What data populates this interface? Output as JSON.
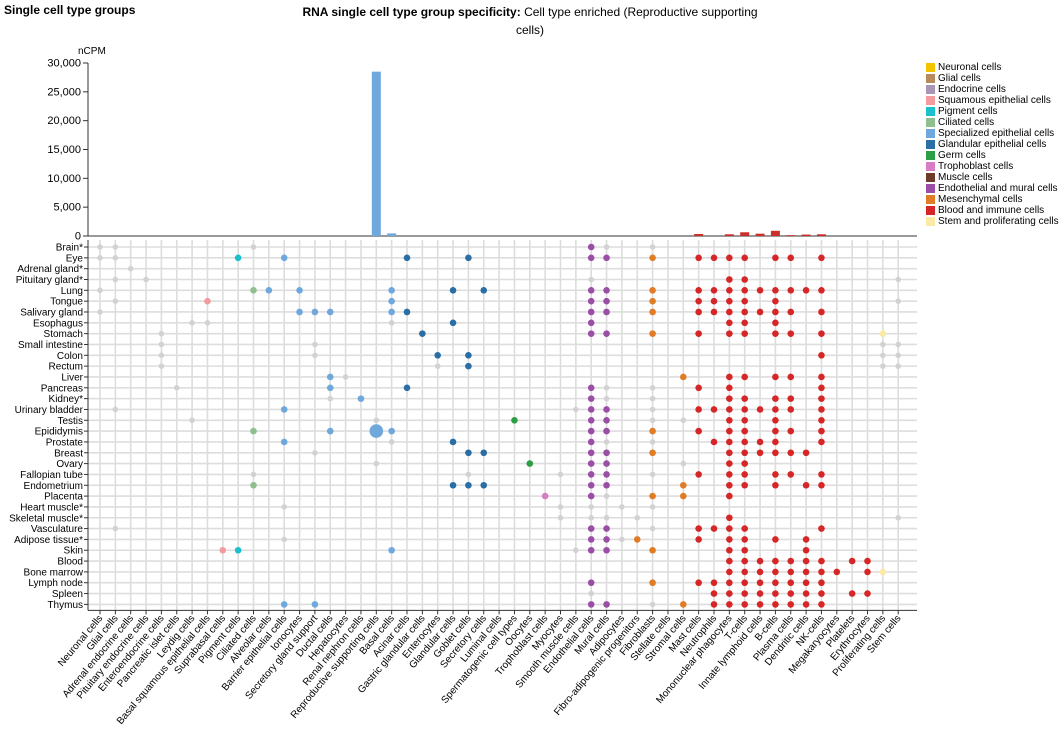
{
  "page": {
    "heading": "Single cell type groups",
    "title_bold": "RNA single cell type group specificity:",
    "title_rest": "Cell type enriched (Reproductive supporting cells)"
  },
  "legend": [
    {
      "label": "Neuronal cells",
      "color": "#f5c400"
    },
    {
      "label": "Glial cells",
      "color": "#b88a5c"
    },
    {
      "label": "Endocrine cells",
      "color": "#a896b4"
    },
    {
      "label": "Squamous epithelial cells",
      "color": "#f49ba0"
    },
    {
      "label": "Pigment cells",
      "color": "#1bc0cc"
    },
    {
      "label": "Ciliated cells",
      "color": "#8fbf8f"
    },
    {
      "label": "Specialized epithelial cells",
      "color": "#6fa8dc"
    },
    {
      "label": "Glandular epithelial cells",
      "color": "#2a6ea6"
    },
    {
      "label": "Germ cells",
      "color": "#2e9e44"
    },
    {
      "label": "Trophoblast cells",
      "color": "#d67dc4"
    },
    {
      "label": "Muscle cells",
      "color": "#6e3b2b"
    },
    {
      "label": "Endothelial and mural cells",
      "color": "#9b4ea6"
    },
    {
      "label": "Mesenchymal cells",
      "color": "#e07b26"
    },
    {
      "label": "Blood and immune cells",
      "color": "#d62728"
    },
    {
      "label": "Stem and proliferating cells",
      "color": "#fbe9a6"
    }
  ],
  "chart_data": {
    "type": "bar",
    "ylabel": "nCPM",
    "ylim": [
      0,
      30000
    ],
    "yticks": [
      0,
      5000,
      10000,
      15000,
      20000,
      25000,
      30000
    ],
    "ytick_labels": [
      "0",
      "5,000",
      "10,000",
      "15,000",
      "20,000",
      "25,000",
      "30,000"
    ],
    "categories": [
      "Neuronal cells",
      "Glial cells",
      "Adrenal endocrine cells",
      "Pituitary endocrine cells",
      "Enteroendocrine cells",
      "Pancreatic islet cells",
      "Leydig cells",
      "Basal squamous epithelial cells",
      "Suprabasal cells",
      "Pigment cells",
      "Ciliated cells",
      "Alveolar cells",
      "Barrier epithelial cells",
      "Ionocytes",
      "Secretory gland support",
      "Ductal cells",
      "Hepatocytes",
      "Renal nephron cells",
      "Reproductive supporting cells",
      "Basal cells",
      "Acinar cells",
      "Gastric glandular cells",
      "Enterocytes",
      "Glandular cells",
      "Goblet cells",
      "Secretory cells",
      "Luminal cells",
      "Spermatogenic cell types",
      "Oocytes",
      "Trophoblast cells",
      "Myocytes",
      "Smooth muscle cells",
      "Endothelial cells",
      "Mural cells",
      "Adipocytes",
      "Fibro-adipogenic progenitors",
      "Fibroblasts",
      "Stellate cells",
      "Stromal cells",
      "Mast cells",
      "Neutrophils",
      "Mononuclear phagocytes",
      "T-cells",
      "Innate lymphoid cells",
      "B-cells",
      "Plasma cells",
      "Dendritic cells",
      "NK-cells",
      "Megakaryocytes",
      "Platelets",
      "Erythrocytes",
      "Proliferating cells",
      "Stem cells"
    ],
    "category_groups": [
      "Neuronal cells",
      "Glial cells",
      "Endocrine cells",
      "Endocrine cells",
      "Endocrine cells",
      "Endocrine cells",
      "Endocrine cells",
      "Squamous epithelial cells",
      "Squamous epithelial cells",
      "Pigment cells",
      "Ciliated cells",
      "Specialized epithelial cells",
      "Specialized epithelial cells",
      "Specialized epithelial cells",
      "Specialized epithelial cells",
      "Specialized epithelial cells",
      "Specialized epithelial cells",
      "Specialized epithelial cells",
      "Specialized epithelial cells",
      "Specialized epithelial cells",
      "Glandular epithelial cells",
      "Glandular epithelial cells",
      "Glandular epithelial cells",
      "Glandular epithelial cells",
      "Glandular epithelial cells",
      "Glandular epithelial cells",
      "Glandular epithelial cells",
      "Germ cells",
      "Germ cells",
      "Trophoblast cells",
      "Muscle cells",
      "Muscle cells",
      "Endothelial and mural cells",
      "Endothelial and mural cells",
      "Mesenchymal cells",
      "Mesenchymal cells",
      "Mesenchymal cells",
      "Mesenchymal cells",
      "Mesenchymal cells",
      "Blood and immune cells",
      "Blood and immune cells",
      "Blood and immune cells",
      "Blood and immune cells",
      "Blood and immune cells",
      "Blood and immune cells",
      "Blood and immune cells",
      "Blood and immune cells",
      "Blood and immune cells",
      "Blood and immune cells",
      "Blood and immune cells",
      "Blood and immune cells",
      "Stem and proliferating cells",
      "Stem and proliferating cells"
    ],
    "values": [
      0,
      0,
      0,
      0,
      0,
      0,
      0,
      0,
      0,
      0,
      0,
      0,
      0,
      0,
      0,
      0,
      0,
      0,
      28500,
      450,
      0,
      0,
      0,
      0,
      0,
      0,
      0,
      0,
      0,
      0,
      0,
      0,
      0,
      0,
      0,
      0,
      0,
      0,
      0,
      350,
      0,
      300,
      650,
      400,
      900,
      150,
      250,
      300,
      0,
      0,
      0,
      0,
      0
    ],
    "tissues": [
      "Brain*",
      "Eye",
      "Adrenal gland*",
      "Pituitary gland*",
      "Lung",
      "Tongue",
      "Salivary gland",
      "Esophagus",
      "Stomach",
      "Small intestine",
      "Colon",
      "Rectum",
      "Liver",
      "Pancreas",
      "Kidney*",
      "Urinary bladder",
      "Testis",
      "Epididymis",
      "Prostate",
      "Breast",
      "Ovary",
      "Fallopian tube",
      "Endometrium",
      "Placenta",
      "Heart muscle*",
      "Skeletal muscle*",
      "Vasculature",
      "Adipose tissue*",
      "Skin",
      "Blood",
      "Bone marrow",
      "Lymph node",
      "Spleen",
      "Thymus"
    ],
    "dot_matrix": [
      {
        "tissue": "Brain*",
        "colored": [
          32
        ],
        "grey": [
          0,
          1,
          10,
          33,
          36
        ]
      },
      {
        "tissue": "Eye",
        "colored": [
          9,
          12,
          20,
          24,
          32,
          33,
          36,
          39,
          40,
          41,
          42,
          44,
          45,
          47
        ],
        "grey": [
          0,
          1
        ]
      },
      {
        "tissue": "Adrenal gland*",
        "colored": [],
        "grey": [
          2
        ]
      },
      {
        "tissue": "Pituitary gland*",
        "colored": [
          41,
          42
        ],
        "grey": [
          1,
          3,
          32,
          52
        ]
      },
      {
        "tissue": "Lung",
        "colored": [
          10,
          11,
          13,
          19,
          23,
          25,
          32,
          33,
          36,
          39,
          40,
          41,
          42,
          43,
          44,
          45,
          46,
          47
        ],
        "grey": [
          0
        ]
      },
      {
        "tissue": "Tongue",
        "colored": [
          7,
          19,
          32,
          33,
          36,
          39,
          40,
          41,
          42,
          44
        ],
        "grey": [
          1,
          52
        ]
      },
      {
        "tissue": "Salivary gland",
        "colored": [
          13,
          14,
          15,
          19,
          20,
          32,
          33,
          36,
          39,
          40,
          41,
          42,
          43,
          44,
          45,
          47
        ],
        "grey": [
          0
        ]
      },
      {
        "tissue": "Esophagus",
        "colored": [
          23,
          32,
          41,
          42,
          44
        ],
        "grey": [
          6,
          7,
          19
        ]
      },
      {
        "tissue": "Stomach",
        "colored": [
          21,
          32,
          33,
          36,
          39,
          41,
          42,
          44,
          45,
          47,
          51
        ],
        "grey": [
          4
        ]
      },
      {
        "tissue": "Small intestine",
        "colored": [],
        "grey": [
          4,
          14,
          51,
          52
        ]
      },
      {
        "tissue": "Colon",
        "colored": [
          22,
          24,
          47
        ],
        "grey": [
          4,
          14,
          51,
          52
        ]
      },
      {
        "tissue": "Rectum",
        "colored": [
          24
        ],
        "grey": [
          4,
          22,
          51,
          52
        ]
      },
      {
        "tissue": "Liver",
        "colored": [
          15,
          38,
          41,
          42,
          44,
          45,
          47
        ],
        "grey": [
          16
        ]
      },
      {
        "tissue": "Pancreas",
        "colored": [
          15,
          20,
          32,
          39,
          41,
          47
        ],
        "grey": [
          5,
          33,
          36
        ]
      },
      {
        "tissue": "Kidney*",
        "colored": [
          17,
          32,
          41,
          42,
          44,
          45,
          47
        ],
        "grey": [
          15,
          33,
          36
        ]
      },
      {
        "tissue": "Urinary bladder",
        "colored": [
          12,
          32,
          33,
          39,
          40,
          41,
          42,
          43,
          44,
          45,
          47
        ],
        "grey": [
          1,
          31,
          36
        ]
      },
      {
        "tissue": "Testis",
        "colored": [
          27,
          32,
          33,
          41,
          42,
          44,
          47
        ],
        "grey": [
          6,
          18,
          36,
          38
        ]
      },
      {
        "tissue": "Epididymis",
        "colored": [
          10,
          15,
          18,
          19,
          32,
          33,
          36,
          39,
          41,
          42,
          44,
          45,
          47
        ],
        "grey": []
      },
      {
        "tissue": "Prostate",
        "colored": [
          12,
          23,
          32,
          40,
          41,
          42,
          43,
          44,
          47
        ],
        "grey": [
          19,
          33,
          36
        ]
      },
      {
        "tissue": "Breast",
        "colored": [
          24,
          25,
          32,
          33,
          36,
          41,
          42,
          43,
          44,
          45,
          46
        ],
        "grey": [
          14
        ]
      },
      {
        "tissue": "Ovary",
        "colored": [
          28,
          32,
          33,
          41,
          42
        ],
        "grey": [
          18,
          38
        ]
      },
      {
        "tissue": "Fallopian tube",
        "colored": [
          32,
          33,
          39,
          41,
          42,
          44,
          45,
          47
        ],
        "grey": [
          10,
          24,
          30,
          36
        ]
      },
      {
        "tissue": "Endometrium",
        "colored": [
          10,
          23,
          24,
          25,
          32,
          33,
          38,
          41,
          42,
          44,
          46,
          47
        ],
        "grey": []
      },
      {
        "tissue": "Placenta",
        "colored": [
          29,
          32,
          36,
          38,
          41
        ],
        "grey": [
          33
        ]
      },
      {
        "tissue": "Heart muscle*",
        "colored": [],
        "grey": [
          12,
          30,
          32,
          34,
          36
        ]
      },
      {
        "tissue": "Skeletal muscle*",
        "colored": [
          41
        ],
        "grey": [
          30,
          32,
          33,
          35,
          52
        ]
      },
      {
        "tissue": "Vasculature",
        "colored": [
          32,
          33,
          39,
          40,
          41,
          42,
          47
        ],
        "grey": [
          1,
          36
        ]
      },
      {
        "tissue": "Adipose tissue*",
        "colored": [
          32,
          33,
          35,
          39,
          41,
          42,
          44,
          46
        ],
        "grey": [
          12,
          34
        ]
      },
      {
        "tissue": "Skin",
        "colored": [
          8,
          9,
          19,
          32,
          33,
          36,
          41,
          42,
          46
        ],
        "grey": [
          31
        ]
      },
      {
        "tissue": "Blood",
        "colored": [
          41,
          42,
          43,
          44,
          45,
          46,
          47,
          49,
          50
        ],
        "grey": []
      },
      {
        "tissue": "Bone marrow",
        "colored": [
          41,
          42,
          43,
          44,
          45,
          46,
          47,
          48,
          50,
          51
        ],
        "grey": []
      },
      {
        "tissue": "Lymph node",
        "colored": [
          32,
          36,
          39,
          40,
          41,
          42,
          43,
          44,
          45,
          46,
          47
        ],
        "grey": []
      },
      {
        "tissue": "Spleen",
        "colored": [
          40,
          41,
          42,
          43,
          44,
          45,
          46,
          47,
          49,
          50
        ],
        "grey": [
          32
        ]
      },
      {
        "tissue": "Thymus",
        "colored": [
          12,
          14,
          32,
          33,
          38,
          40,
          41,
          42,
          43,
          44,
          45,
          46,
          47
        ],
        "grey": [
          36
        ]
      }
    ],
    "highlight": {
      "tissue": "Epididymis",
      "category": "Reproductive supporting cells"
    },
    "grid": true,
    "legend_position": "right"
  }
}
